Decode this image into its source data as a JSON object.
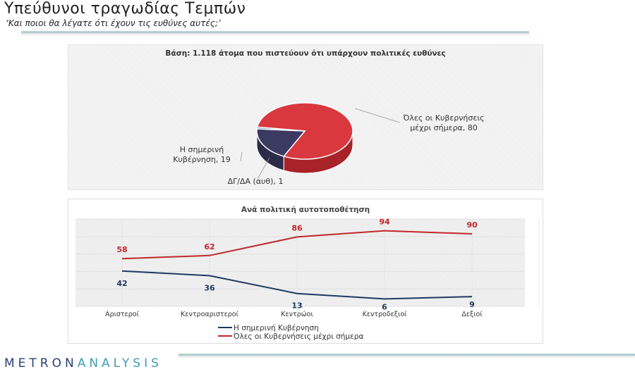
{
  "header": {
    "title": "Υπεύθυνοι τραγωδίας Τεμπών",
    "subtitle": "‘Και ποιοι θα λέγατε ότι έχουν τις ευθύνες αυτές;’"
  },
  "footer": {
    "logo_part1": "METRON",
    "logo_part2": "ANALYSIS"
  },
  "colors": {
    "red": "#c0282d",
    "navy": "#1f3a5f",
    "pie_red": "#d9383e",
    "pie_navy": "#3a3a62",
    "pie_blue": "#4e7495"
  },
  "chart_data": [
    {
      "type": "pie",
      "title": "Βάση: 1.118 άτομα που πιστεύουν ότι υπάρχουν πολιτικές ευθύνες",
      "slices": [
        {
          "label": "Όλες οι Κυβερνήσεις μέχρι σήμερα",
          "value": 80,
          "data_label": "Όλες οι Κυβερνήσεις μέχρι σήμερα, 80",
          "label_line1": "Όλες οι Κυβερνήσεις",
          "label_line2": "μέχρι σήμερα, 80"
        },
        {
          "label": "Η σημερινή Κυβέρνηση",
          "value": 19,
          "data_label": "Η σημερινή Κυβέρνηση, 19",
          "label_line1": "Η σημερινή",
          "label_line2": "Κυβέρνηση, 19"
        },
        {
          "label": "ΔΓ/ΔΑ (αυθ)",
          "value": 1,
          "data_label": "ΔΓ/ΔΑ (αυθ), 1"
        }
      ]
    },
    {
      "type": "line",
      "title": "Ανά πολιτική αυτοτοποθέτηση",
      "categories": [
        "Αριστεροί",
        "Κεντροαριστεροί",
        "Κεντρώοι",
        "Κεντροδεξιοί",
        "Δεξιοί"
      ],
      "ylim": [
        0,
        100
      ],
      "grid": true,
      "legend_position": "bottom",
      "series": [
        {
          "name": "Η σημερινή Κυβέρνηση",
          "values": [
            42,
            36,
            13,
            6,
            9
          ],
          "color": "#1f3a5f"
        },
        {
          "name": "Όλες οι Κυβερνήσεις μέχρι σήμερα",
          "values": [
            58,
            62,
            86,
            94,
            90
          ],
          "color": "#c0282d"
        }
      ]
    }
  ]
}
